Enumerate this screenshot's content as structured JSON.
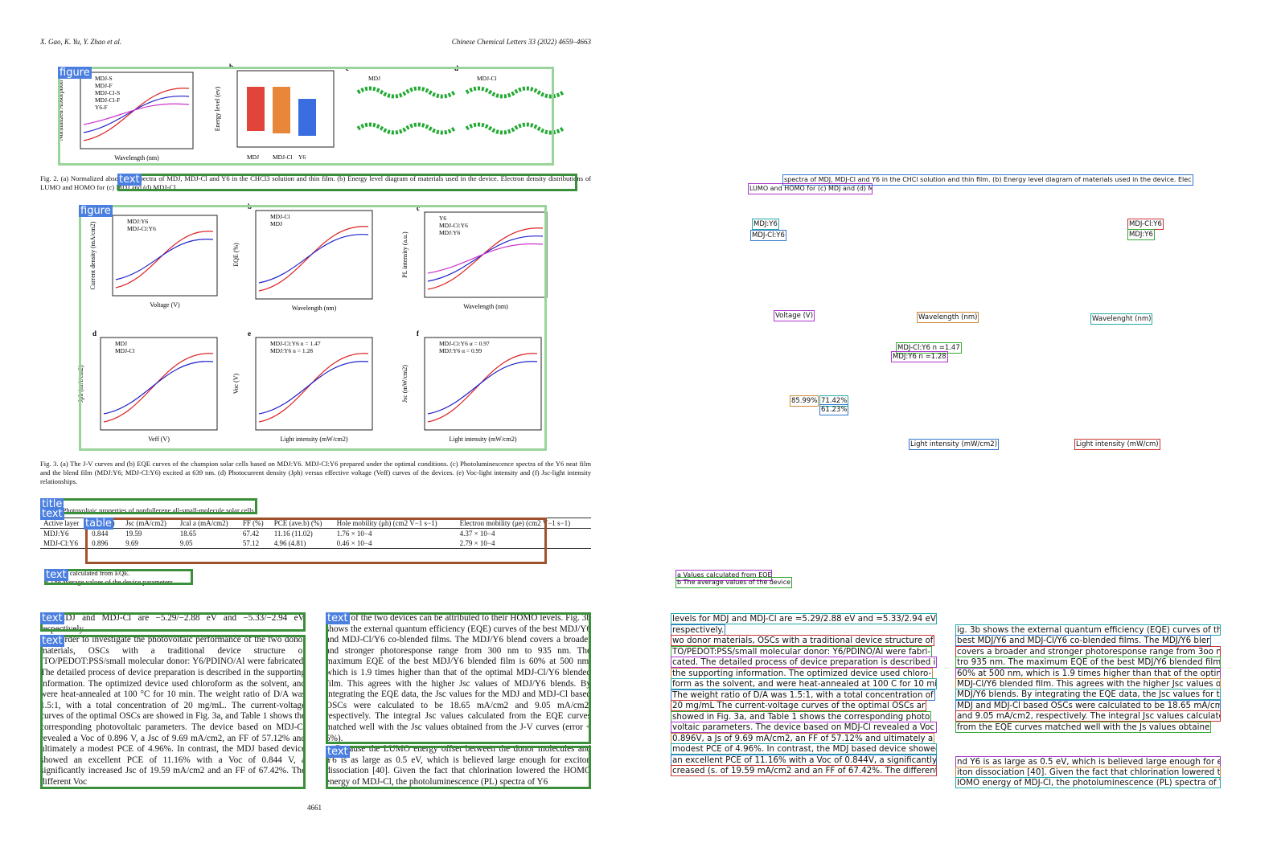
{
  "header": {
    "authors": "X. Gao, K. Yu, Y. Zhao et al.",
    "journal": "Chinese Chemical Letters 33 (2022) 4659–4663"
  },
  "layout_labels": {
    "figure": "figure",
    "text": "text",
    "title": "title",
    "table": "table"
  },
  "figures": [
    {
      "caption": "Fig. 2. (a) Normalized absorption spectra of MDJ, MDJ-Cl and Y6 in the CHCl3 solution and thin film. (b) Energy level diagram of materials used in the device. Electron density distributions of LUMO and HOMO for (c) MDJ and (d) MDJ-Cl.",
      "panels": [
        {
          "letter": "a",
          "x_label": "Wavelength (nm)",
          "y_label": "Normalized Absorption",
          "legend": [
            "MDJ-S",
            "MDJ-F",
            "MDJ-Cl-S",
            "MDJ-Cl-F",
            "Y6-F"
          ]
        },
        {
          "letter": "b",
          "x_label": "",
          "y_label": "Energy level (ev)",
          "legend": [
            "MDJ",
            "MDJ-Cl",
            "Y6"
          ]
        },
        {
          "letter": "c",
          "x_label": "",
          "y_label": "",
          "legend": [
            "MDJ"
          ]
        },
        {
          "letter": "d",
          "x_label": "",
          "y_label": "",
          "legend": [
            "MDJ-Cl"
          ]
        }
      ]
    },
    {
      "caption": "Fig. 3. (a) The J-V curves and (b) EQE curves of the champion solar cells based on MDJ:Y6. MDJ-Cl:Y6 prepared under the optimal conditions. (c) Photoluminescence spectra of the Y6 neat film and the blend film (MDJ:Y6; MDJ-Cl:Y6) excited at 639 nm. (d) Photocurrent density (Jph) versus effective voltage (Veff) curves of the devices. (e) Voc-light intensity and (f) Jsc-light intensity relationships.",
      "panels": [
        {
          "letter": "a",
          "x_label": "Voltage (V)",
          "y_label": "Current density (mA/cm2)",
          "legend": [
            "MDJ:Y6",
            "MDJ-Cl:Y6"
          ]
        },
        {
          "letter": "b",
          "x_label": "Wavelength (nm)",
          "y_label": "EQE (%)",
          "legend": [
            "MDJ-Cl",
            "MDJ"
          ]
        },
        {
          "letter": "c",
          "x_label": "Wavelength (nm)",
          "y_label": "PL intensity (a.u.)",
          "legend": [
            "Y6",
            "MDJ-Cl:Y6",
            "MDJ:Y6"
          ]
        },
        {
          "letter": "d",
          "x_label": "Veff (V)",
          "y_label": "Jph (mA/cm2)",
          "legend": [
            "MDJ",
            "MDJ-Cl"
          ]
        },
        {
          "letter": "e",
          "x_label": "Light intensity (mW/cm2)",
          "y_label": "Voc (V)",
          "legend": [
            "MDJ-Cl:Y6 n = 1.47",
            "MDJ:Y6 n = 1.28"
          ]
        },
        {
          "letter": "f",
          "x_label": "Light intensity (mW/cm2)",
          "y_label": "Jsc (mW/cm2)",
          "legend": [
            "MDJ-Cl:Y6 α = 0.97",
            "MDJ:Y6 α = 0.99"
          ]
        }
      ]
    }
  ],
  "table": {
    "title": "Table 1 Photovoltaic properties of nonfullerene all-small-molecule solar cells.",
    "header": [
      "Active layer",
      "Voc (V)",
      "Jsc (mA/cm2)",
      "Jcal a (mA/cm2)",
      "FF (%)",
      "PCE (ave.b) (%)",
      "Hole mobility (μh) (cm2 V−1 s−1)",
      "Electron mobility (μe) (cm2 V−1 s−1)"
    ],
    "rows": [
      [
        "MDJ:Y6",
        "0.844",
        "19.59",
        "18.65",
        "67.42",
        "11.16 (11.02)",
        "1.76 × 10−4",
        "4.37 × 10−4"
      ],
      [
        "MDJ-Cl:Y6",
        "0.896",
        "9.69",
        "9.05",
        "57.12",
        "4.96 (4.81)",
        "0.46 × 10−4",
        "2.79 × 10−4"
      ]
    ],
    "notes": [
      "a Values calculated from EQE.",
      "b The average values of the device parameters."
    ]
  },
  "body": {
    "left": [
      "for MDJ and MDJ-Cl are −5.29/−2.88 eV and −5.33/−2.94 eV, respectively.",
      "In order to investigate the photovoltaic performance of the two donor materials, OSCs with a traditional device structure of ITO/PEDOT:PSS/small molecular donor: Y6/PDINO/Al were fabricated. The detailed process of device preparation is described in the supporting information. The optimized device used chloroform as the solvent, and were heat-annealed at 100 °C for 10 min. The weight ratio of D/A was 1.5:1, with a total concentration of 20 mg/mL. The current-voltage curves of the optimal OSCs are showed in Fig. 3a, and Table 1 shows the corresponding photovoltaic parameters. The device based on MDJ-Cl revealed a Voc of 0.896 V, a Jsc of 9.69 mA/cm2, an FF of 57.12% and ultimately a modest PCE of 4.96%. In contrast, the MDJ based device showed an excellent PCE of 11.16% with a Voc of 0.844 V, a significantly increased Jsc of 19.59 mA/cm2 and an FF of 67.42%. The different Voc"
    ],
    "right": [
      "values of the two devices can be attributed to their HOMO levels. Fig. 3b shows the external quantum efficiency (EQE) curves of the best MDJ/Y6 and MDJ-Cl/Y6 co-blended films. The MDJ/Y6 blend covers a broader and stronger photoresponse range from 300 nm to 935 nm. The maximum EQE of the best MDJ/Y6 blended film is 60% at 500 nm, which is 1.9 times higher than that of the optimal MDJ-Cl/Y6 blended film. This agrees with the higher Jsc values of MDJ/Y6 blends. By integrating the EQE data, the Jsc values for the MDJ and MDJ-Cl based OSCs were calculated to be 18.65 mA/cm2 and 9.05 mA/cm2, respectively. The integral Jsc values calculated from the EQE curves matched well with the Jsc values obtained from the J-V curves (error < 5%).",
      "Because the LUMO energy offset between the donor molecules and Y6 is as large as 0.5 eV, which is believed large enough for exciton dissociation [40]. Given the fact that chlorination lowered the HOMO energy of MDJ-Cl, the photoluminescence (PL) spectra of Y6"
    ]
  },
  "page_number": "4661",
  "ocr": {
    "captions": [
      "spectra of MDJ, MDJ-Cl and Y6 in the CHCl solution and thin film. (b) Energy level diagram of materials used in the device. Elec",
      "LUMO and HOMO for (c) MDJ and (d) MDJ-Cl."
    ],
    "figure_labels": [
      "MDJ:Y6",
      "MDJ-Cl:Y6",
      "MDJ-Cl:Y6",
      "MDJ:Y6",
      "Voltage (V)",
      "Wavelength (nm)",
      "Wavelenght (nm)",
      "Light intensity (mW/cm2)",
      "Light intensity (mW/cm)",
      "MDJ-Cl:Y6 n =1.47",
      "MDJ:Y6 n =1.28",
      "85.99%",
      "71.42%",
      "61.23%"
    ],
    "table_notes": [
      "a Values calculated from EQE.",
      "b The average values of the device p"
    ],
    "left": [
      "levels for MDJ and MDJ-Cl are =5.29/2.88 eV and =5.33/2.94 eV",
      "respectively.",
      "wo donor materials, OSCs with a traditional device structure of",
      "TO/PEDOT:PSS/small molecular donor: Y6/PDINO/Al were fabri-",
      "cated. The detailed process of device preparation is described ir",
      "the supporting information. The optimized device used chloro-",
      "form as the solvent, and were heat-annealed at 100 C for 10 min",
      "The weight ratio of D/A was 1.5:1, with a total concentration of",
      "20 mg/mL The current-voltage curves of the optimal OSCs ar",
      "showed in Fig. 3a, and Table 1 shows the corresponding photo",
      "voltaic parameters. The device based on MDJ-Cl revealed a Voc of",
      "0.896V, a Js of 9.69 mA/cm2, an FF of 57.12% and ultimately a",
      "modest PCE of 4.96%. In contrast, the MDJ based device showed",
      "an excellent PCE of 11.16% with a Voc of 0.844V, a significantly in",
      "creased (s. of 19.59 mA/cm2 and an FF of 67.42%. The different Voc"
    ],
    "right": [
      "ig. 3b shows the external quantum efficiency (EQE) curves of the",
      "best MDJ/Y6 and MDJ-Cl/Y6 co-blended films. The MDJ/Y6 bler",
      "covers a broader and stronger photoresponse range from 3oo nn",
      "tro 935 nm. The maximum EQE of the best MDJ/Y6 blended film is",
      "60% at 500 nm, which is 1.9 times higher than that of the optin a",
      "MDJ-Cl/Y6 blended film. This agrees with the higher Jsc values ot",
      "MDJ/Y6 blends. By integrating the EQE data, the Jsc values for the",
      "MDJ and MDJ-Cl based OSCs were calculated to be 18.65 mA/cma",
      "and 9.05 mA/cm2, respectively. The integral Jsc values calculatec",
      "from the EQE curves matched well with the Js values obtaine",
      "nd Y6 is as large as 0.5 eV, which is believed large enough for ex",
      "iton dissociation [40]. Given the fact that chlorination lowered th",
      "IOMO energy of MDJ-Cl, the photoluminescence (PL) spectra of Y"
    ]
  }
}
